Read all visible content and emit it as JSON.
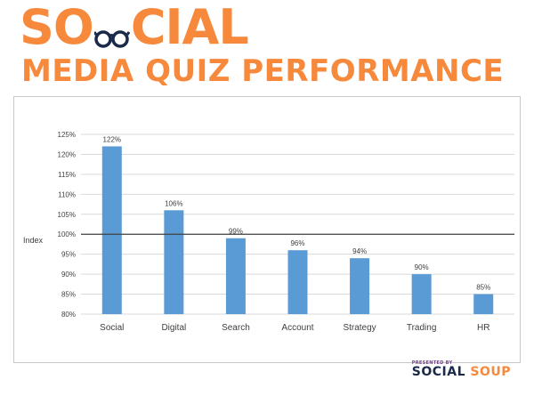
{
  "header": {
    "title_word_pre": "S",
    "title_word_o": "O",
    "title_word_post": "CIAL",
    "subtitle": "MEDIA QUIZ PERFORMANCE",
    "logo_icon": "glasses-icon"
  },
  "footer": {
    "presented_by": "PRESENTED BY",
    "brand_social": "SOCIAL",
    "brand_soup": "SOUP"
  },
  "colors": {
    "brand_orange": "#f6893b",
    "brand_navy": "#1c2a4a",
    "bar_blue": "#5b9bd5",
    "grid": "#d9d9d9",
    "reference_line": "#404040",
    "text": "#404040"
  },
  "chart_data": {
    "type": "bar",
    "categories": [
      "Social",
      "Digital",
      "Search",
      "Account",
      "Strategy",
      "Trading",
      "HR"
    ],
    "values": [
      122,
      106,
      99,
      96,
      94,
      90,
      85
    ],
    "data_labels": [
      "122%",
      "106%",
      "99%",
      "96%",
      "94%",
      "90%",
      "85%"
    ],
    "ylabel": "Index",
    "ylim": [
      80,
      125
    ],
    "yticks": [
      80,
      85,
      90,
      95,
      100,
      105,
      110,
      115,
      120,
      125
    ],
    "ytick_labels": [
      "80%",
      "85%",
      "90%",
      "95%",
      "100%",
      "105%",
      "110%",
      "115%",
      "120%",
      "125%"
    ],
    "reference_line": 100,
    "grid": true
  }
}
